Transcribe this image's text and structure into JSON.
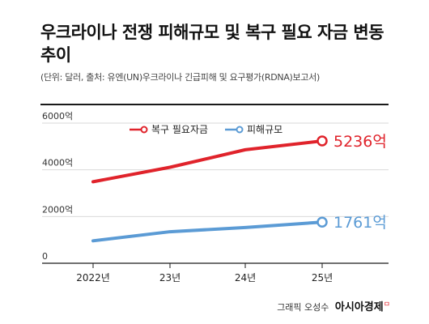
{
  "header": {
    "title": "우크라이나 전쟁 피해규모 및 복구 필요 자금 변동 추이",
    "subtitle": "(단위: 달러, 출처: 유엔(UN)우크라이나 긴급피해 및 요구평가(RDNA)보고서)"
  },
  "footer": {
    "credit": "그래픽 오성수",
    "brand": "아시아경제",
    "brand_mark": "ㅁ"
  },
  "colors": {
    "recovery": "#e0232b",
    "damage": "#5b9bd5",
    "axis": "#1a1a1a",
    "grid": "#d9d9d9"
  },
  "chart_data": {
    "type": "line",
    "categories": [
      "2022년",
      "23년",
      "24년",
      "25년"
    ],
    "ylim": [
      0,
      6000
    ],
    "y_ticks": [
      0,
      2000,
      4000,
      6000
    ],
    "y_tick_labels": [
      "0",
      "2000억",
      "4000억",
      "6000억"
    ],
    "grid": true,
    "legend_position": "top",
    "series": [
      {
        "name": "복구 필요자금",
        "values": [
          3490,
          4110,
          4860,
          5236
        ],
        "end_label": "5236억",
        "color": "#e0232b"
      },
      {
        "name": "피해규모",
        "values": [
          960,
          1350,
          1530,
          1761
        ],
        "end_label": "1761억",
        "color": "#5b9bd5"
      }
    ]
  }
}
